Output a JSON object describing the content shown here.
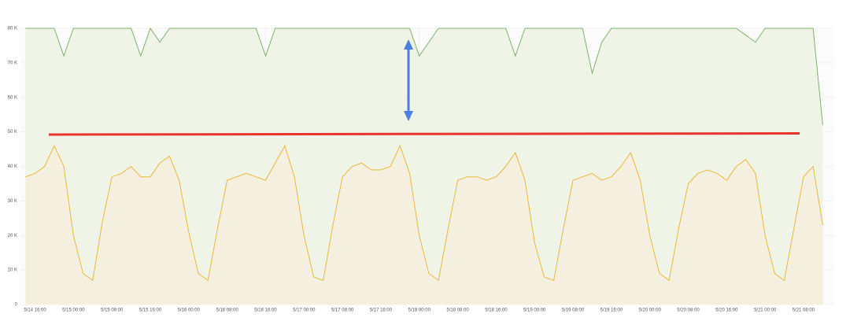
{
  "chart_data": {
    "type": "line",
    "x": [
      "5/14 14:00",
      "5/14 16:00",
      "5/14 18:00",
      "5/14 20:00",
      "5/14 22:00",
      "5/15 00:00",
      "5/15 02:00",
      "5/15 04:00",
      "5/15 06:00",
      "5/15 08:00",
      "5/15 10:00",
      "5/15 12:00",
      "5/15 14:00",
      "5/15 16:00",
      "5/15 18:00",
      "5/15 20:00",
      "5/15 22:00",
      "5/16 00:00",
      "5/16 02:00",
      "5/16 04:00",
      "5/16 06:00",
      "5/16 08:00",
      "5/16 10:00",
      "5/16 12:00",
      "5/16 14:00",
      "5/16 16:00",
      "5/16 18:00",
      "5/16 20:00",
      "5/16 22:00",
      "5/17 00:00",
      "5/17 02:00",
      "5/17 04:00",
      "5/17 06:00",
      "5/17 08:00",
      "5/17 10:00",
      "5/17 12:00",
      "5/17 14:00",
      "5/17 16:00",
      "5/17 18:00",
      "5/17 20:00",
      "5/17 22:00",
      "5/18 00:00",
      "5/18 02:00",
      "5/18 04:00",
      "5/18 06:00",
      "5/18 08:00",
      "5/18 10:00",
      "5/18 12:00",
      "5/18 14:00",
      "5/18 16:00",
      "5/18 18:00",
      "5/18 20:00",
      "5/18 22:00",
      "5/19 00:00",
      "5/19 02:00",
      "5/19 04:00",
      "5/19 06:00",
      "5/19 08:00",
      "5/19 10:00",
      "5/19 12:00",
      "5/19 14:00",
      "5/19 16:00",
      "5/19 18:00",
      "5/19 20:00",
      "5/19 22:00",
      "5/20 00:00",
      "5/20 02:00",
      "5/20 04:00",
      "5/20 06:00",
      "5/20 08:00",
      "5/20 10:00",
      "5/20 12:00",
      "5/20 14:00",
      "5/20 16:00",
      "5/20 18:00",
      "5/20 20:00",
      "5/20 22:00",
      "5/21 00:00",
      "5/21 02:00",
      "5/21 04:00",
      "5/21 06:00",
      "5/21 08:00",
      "5/21 10:00",
      "5/21 12:00"
    ],
    "series": [
      {
        "color": "#7eb26d",
        "fill": "#eef3e4",
        "values": [
          80,
          80,
          80,
          80,
          72,
          80,
          80,
          80,
          80,
          80,
          80,
          80,
          72,
          80,
          76,
          80,
          80,
          80,
          80,
          80,
          80,
          80,
          80,
          80,
          80,
          72,
          80,
          80,
          80,
          80,
          80,
          80,
          80,
          80,
          80,
          80,
          80,
          80,
          80,
          80,
          80,
          72,
          76,
          80,
          80,
          80,
          80,
          80,
          80,
          80,
          80,
          72,
          80,
          80,
          80,
          80,
          80,
          80,
          80,
          67,
          76,
          80,
          80,
          80,
          80,
          80,
          80,
          80,
          80,
          80,
          80,
          80,
          80,
          80,
          80,
          78,
          76,
          80,
          80,
          80,
          80,
          80,
          80,
          52
        ]
      },
      {
        "color": "#eab839",
        "fill": "#f4eedd",
        "values": [
          37,
          38,
          40,
          46,
          40,
          20,
          9,
          7,
          24,
          37,
          38,
          40,
          37,
          37,
          41,
          43,
          36,
          21,
          9,
          7,
          22,
          36,
          37,
          38,
          37,
          36,
          41,
          46,
          37,
          20,
          8,
          7,
          23,
          37,
          40,
          41,
          39,
          39,
          40,
          46,
          38,
          20,
          9,
          7,
          22,
          36,
          37,
          37,
          36,
          37,
          40,
          44,
          36,
          18,
          8,
          7,
          22,
          36,
          37,
          38,
          36,
          37,
          40,
          44,
          36,
          20,
          9,
          7,
          22,
          35,
          38,
          39,
          38,
          36,
          40,
          42,
          38,
          20,
          9,
          7,
          22,
          37,
          40,
          23
        ]
      }
    ],
    "xlim": [
      "5/14 12:48",
      "5/21 14:24"
    ],
    "xticks": [
      "5/14 16:00",
      "5/15 00:00",
      "5/15 08:00",
      "5/15 16:00",
      "5/16 00:00",
      "5/16 08:00",
      "5/16 16:00",
      "5/17 00:00",
      "5/17 08:00",
      "5/17 16:00",
      "5/18 00:00",
      "5/18 08:00",
      "5/18 16:00",
      "5/19 00:00",
      "5/19 08:00",
      "5/19 16:00",
      "5/20 00:00",
      "5/20 08:00",
      "5/20 16:00",
      "5/21 00:00",
      "5/21 08:00"
    ],
    "ylim": [
      0,
      80
    ],
    "yticks": [
      0,
      {
        "value": 10,
        "label": "10 K"
      },
      {
        "value": 20,
        "label": "20 K"
      },
      {
        "value": 30,
        "label": "30 K"
      },
      {
        "value": 40,
        "label": "40 K"
      },
      {
        "value": 50,
        "label": "50 K"
      },
      {
        "value": 60,
        "label": "60 K"
      },
      {
        "value": 70,
        "label": "70 K"
      },
      {
        "value": 80,
        "label": "80 K"
      }
    ],
    "grid": true
  }
}
